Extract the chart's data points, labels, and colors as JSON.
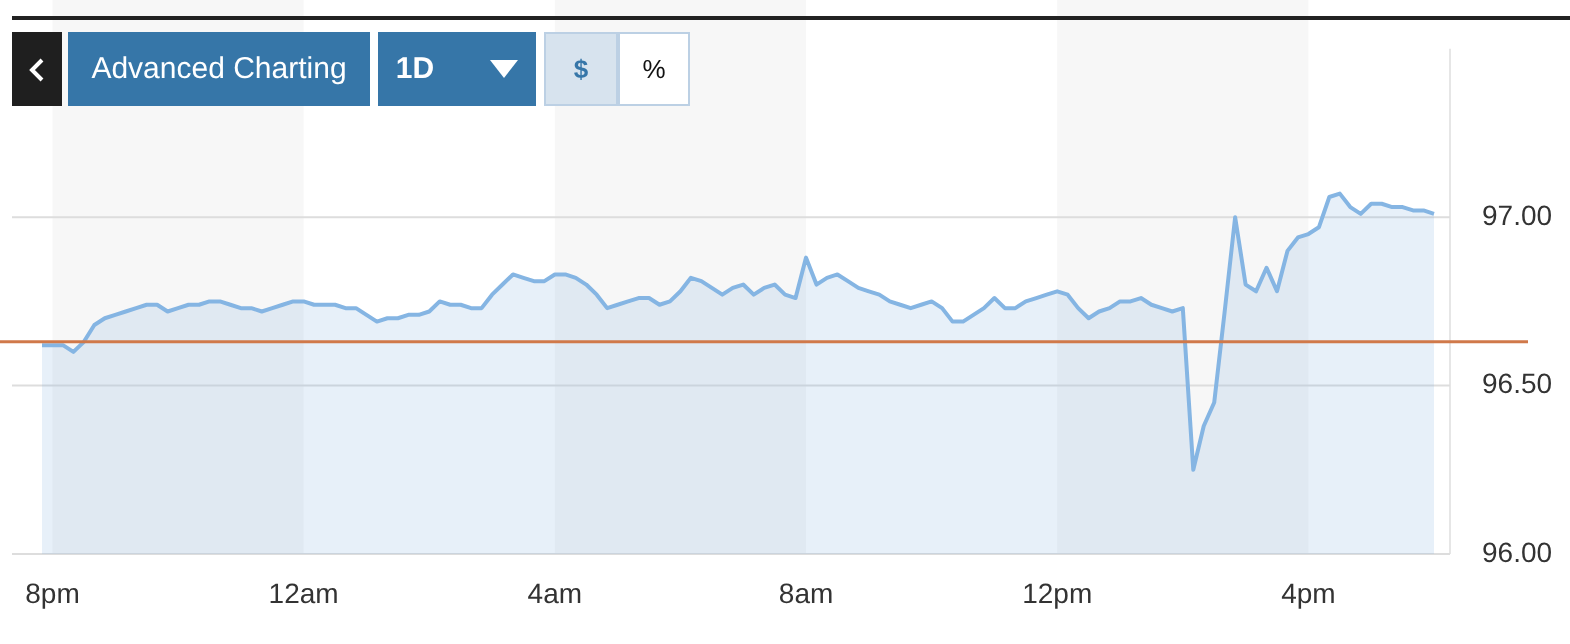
{
  "chart_data": {
    "type": "area",
    "annotations": [
      "Advanced Charting",
      "1D",
      "$",
      "%"
    ],
    "categories": [
      null,
      "8pm",
      null,
      null,
      null,
      null,
      null,
      null,
      null,
      null,
      null,
      null,
      null,
      null,
      null,
      null,
      null,
      null,
      null,
      null,
      null,
      null,
      null,
      null,
      null,
      "12am",
      null,
      null,
      null,
      null,
      null,
      null,
      null,
      null,
      null,
      null,
      null,
      null,
      null,
      null,
      null,
      null,
      null,
      null,
      null,
      null,
      null,
      null,
      null,
      "4am",
      null,
      null,
      null,
      null,
      null,
      null,
      null,
      null,
      null,
      null,
      null,
      null,
      null,
      null,
      null,
      null,
      null,
      null,
      null,
      null,
      null,
      null,
      null,
      "8am",
      null,
      null,
      null,
      null,
      null,
      null,
      null,
      null,
      null,
      null,
      null,
      null,
      null,
      null,
      null,
      null,
      null,
      null,
      null,
      null,
      null,
      null,
      null,
      "12pm",
      null,
      null,
      null,
      null,
      null,
      null,
      null,
      null,
      null,
      null,
      null,
      null,
      null,
      null,
      null,
      null,
      null,
      null,
      null,
      null,
      null,
      null,
      null,
      "4pm",
      null,
      null,
      null,
      null,
      null,
      null,
      null,
      null,
      null,
      null,
      null,
      null
    ],
    "series": [
      {
        "color": "#85b5e3",
        "values": [
          96.62,
          96.62,
          96.62,
          96.6,
          96.63,
          96.68,
          96.7,
          96.71,
          96.72,
          96.73,
          96.74,
          96.74,
          96.72,
          96.73,
          96.74,
          96.74,
          96.75,
          96.75,
          96.74,
          96.73,
          96.73,
          96.72,
          96.73,
          96.74,
          96.75,
          96.75,
          96.74,
          96.74,
          96.74,
          96.73,
          96.73,
          96.71,
          96.69,
          96.7,
          96.7,
          96.71,
          96.71,
          96.72,
          96.75,
          96.74,
          96.74,
          96.73,
          96.73,
          96.77,
          96.8,
          96.83,
          96.82,
          96.81,
          96.81,
          96.83,
          96.83,
          96.82,
          96.8,
          96.77,
          96.73,
          96.74,
          96.75,
          96.76,
          96.76,
          96.74,
          96.75,
          96.78,
          96.82,
          96.81,
          96.79,
          96.77,
          96.79,
          96.8,
          96.77,
          96.79,
          96.8,
          96.77,
          96.76,
          96.88,
          96.8,
          96.82,
          96.83,
          96.81,
          96.79,
          96.78,
          96.77,
          96.75,
          96.74,
          96.73,
          96.74,
          96.75,
          96.73,
          96.69,
          96.69,
          96.71,
          96.73,
          96.76,
          96.73,
          96.73,
          96.75,
          96.76,
          96.77,
          96.78,
          96.77,
          96.73,
          96.7,
          96.72,
          96.73,
          96.75,
          96.75,
          96.76,
          96.74,
          96.73,
          96.72,
          96.73,
          96.25,
          96.38,
          96.45,
          96.72,
          97.0,
          96.8,
          96.78,
          96.85,
          96.78,
          96.9,
          96.94,
          96.95,
          96.97,
          97.06,
          97.07,
          97.03,
          97.01,
          97.04,
          97.04,
          97.03,
          97.03,
          97.02,
          97.02,
          97.01
        ]
      }
    ],
    "ylim": [
      96,
      97.5
    ],
    "yticks": [
      {
        "value": 96,
        "label": "96.00"
      },
      {
        "value": 96.5,
        "label": "96.50"
      },
      {
        "value": 97,
        "label": "97.00"
      }
    ],
    "grid": "y",
    "legend": false,
    "marker": "none",
    "line_style": "solid",
    "ref_lines": [
      {
        "axis": "y",
        "value": 96.63,
        "color": "#d0794a"
      }
    ],
    "bands": [
      {
        "axis": "x",
        "from": "8pm",
        "to": "12am",
        "color": "#f7f7f7"
      },
      {
        "axis": "x",
        "from": "4am",
        "to": "8am",
        "color": "#f7f7f7"
      },
      {
        "axis": "x",
        "from": "12pm",
        "to": "4pm",
        "color": "#f7f7f7"
      }
    ]
  }
}
